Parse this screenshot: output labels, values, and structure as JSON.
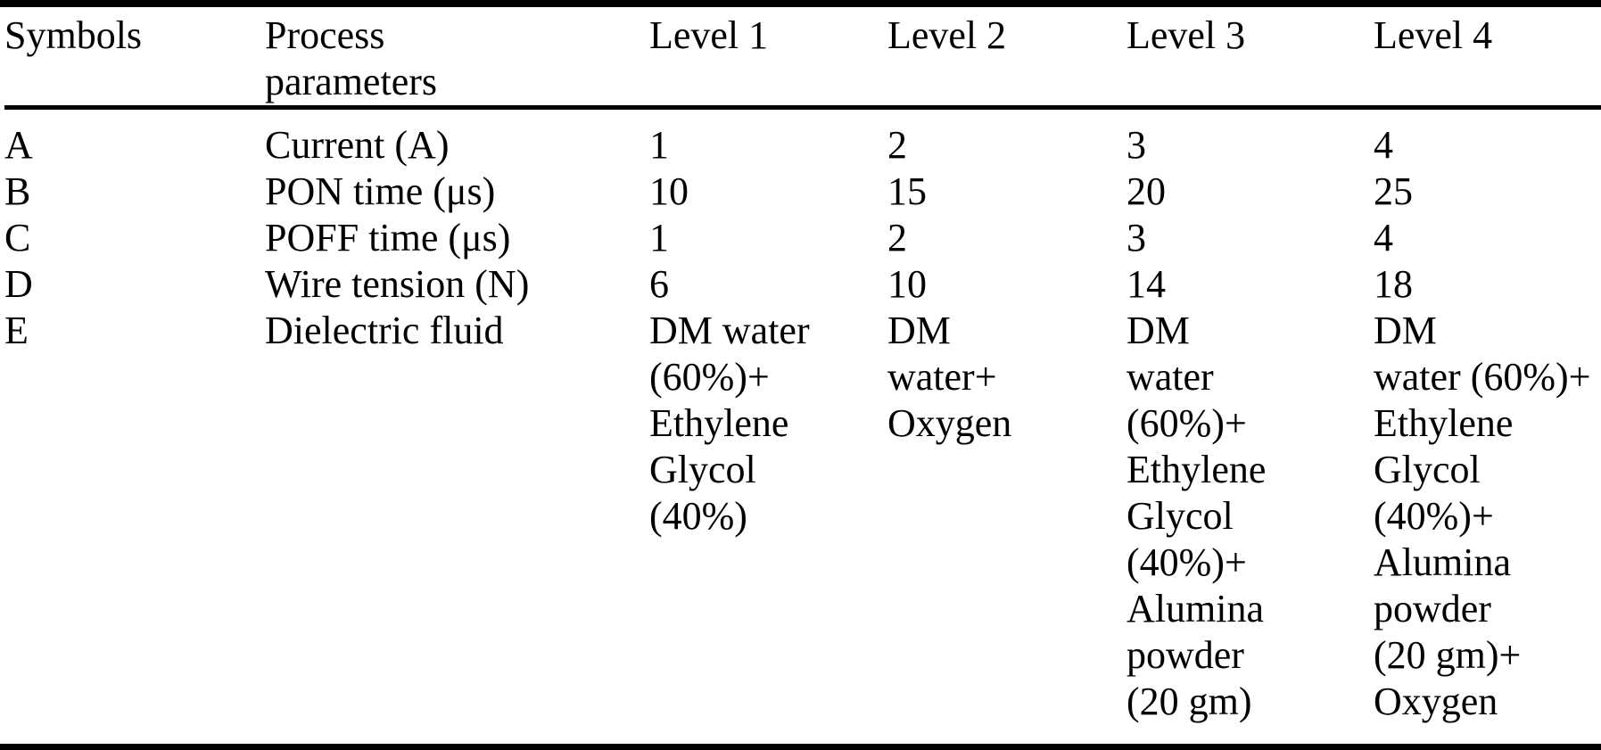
{
  "table": {
    "headers": [
      "Symbols",
      "Process\nparameters",
      "Level 1",
      "Level 2",
      "Level 3",
      "Level 4"
    ],
    "rows": [
      {
        "symbol": "A",
        "parameter": "Current (A)",
        "levels": [
          "1",
          "2",
          "3",
          "4"
        ]
      },
      {
        "symbol": "B",
        "parameter": "PON time (μs)",
        "levels": [
          "10",
          "15",
          "20",
          "25"
        ]
      },
      {
        "symbol": "C",
        "parameter": "POFF time (μs)",
        "levels": [
          "1",
          "2",
          "3",
          "4"
        ]
      },
      {
        "symbol": "D",
        "parameter": "Wire tension (N)",
        "levels": [
          "6",
          "10",
          "14",
          "18"
        ]
      },
      {
        "symbol": "E",
        "parameter": "Dielectric fluid",
        "levels": [
          "DM water\n(60%)+\nEthylene\nGlycol\n(40%)",
          "DM\nwater+\nOxygen",
          "DM\nwater\n(60%)+\nEthylene\nGlycol\n(40%)+\nAlumina\npowder\n(20 gm)",
          "DM\nwater (60%)+\nEthylene\nGlycol\n(40%)+\nAlumina\npowder\n(20 gm)+\nOxygen"
        ]
      }
    ]
  }
}
